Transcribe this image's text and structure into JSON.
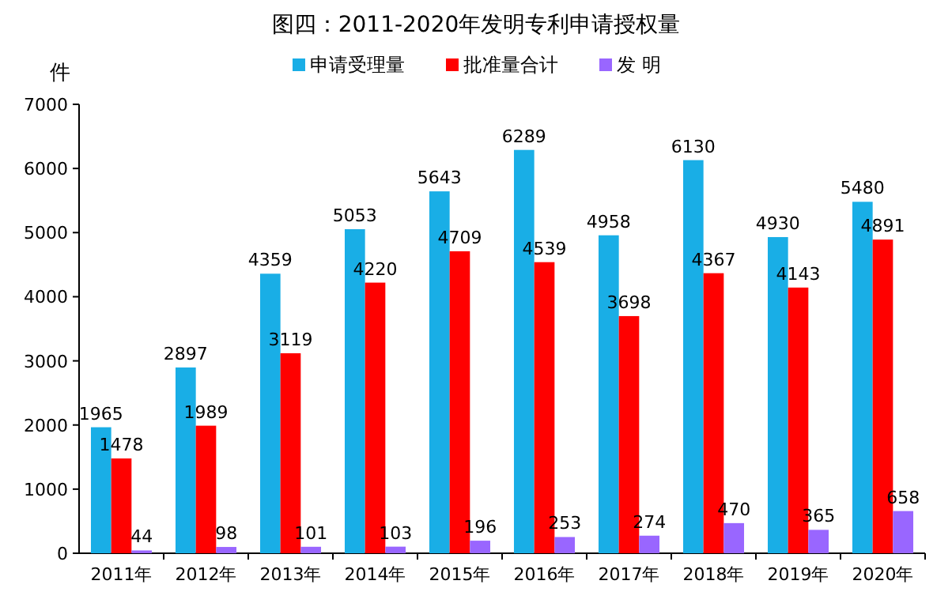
{
  "chart_data": {
    "type": "bar",
    "title": "图四：2011-2020年发明专利申请授权量",
    "ylabel": "件",
    "categories": [
      "2011年",
      "2012年",
      "2013年",
      "2014年",
      "2015年",
      "2016年",
      "2017年",
      "2018年",
      "2019年",
      "2020年"
    ],
    "series": [
      {
        "name": "申请受理量",
        "color": "#19aee6",
        "values": [
          1965,
          2897,
          4359,
          5053,
          5643,
          6289,
          4958,
          6130,
          4930,
          5480
        ]
      },
      {
        "name": "批准量合计",
        "color": "#ff0000",
        "values": [
          1478,
          1989,
          3119,
          4220,
          4709,
          4539,
          3698,
          4367,
          4143,
          4891
        ]
      },
      {
        "name": "发 明",
        "color": "#9966ff",
        "values": [
          44,
          98,
          101,
          103,
          196,
          253,
          274,
          470,
          365,
          658
        ]
      }
    ],
    "ylim": [
      0,
      7000
    ],
    "yticks": [
      0,
      1000,
      2000,
      3000,
      4000,
      5000,
      6000,
      7000
    ],
    "data_labels": true,
    "legend": "top",
    "grid": false
  }
}
